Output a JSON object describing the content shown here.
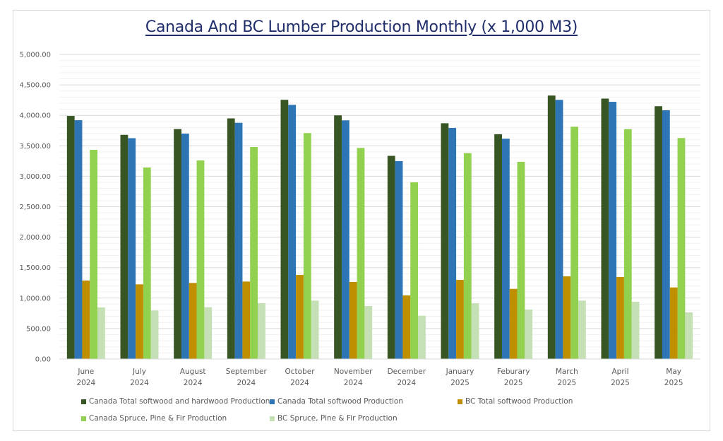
{
  "chart_data": {
    "type": "bar",
    "title": "Canada And BC Lumber Production Monthly (x 1,000 M3)",
    "xlabel": "",
    "ylabel": "",
    "ylim": [
      0,
      5000
    ],
    "y_major_step": 500,
    "y_minor_step": 100,
    "grid": true,
    "legend_position": "bottom",
    "yticks": [
      "0.00",
      "500.00",
      "1,000.00",
      "1,500.00",
      "2,000.00",
      "2,500.00",
      "3,000.00",
      "3,500.00",
      "4,000.00",
      "4,500.00",
      "5,000.00"
    ],
    "categories": [
      [
        "June",
        "2024"
      ],
      [
        "July",
        "2024"
      ],
      [
        "August",
        "2024"
      ],
      [
        "September",
        "2024"
      ],
      [
        "October",
        "2024"
      ],
      [
        "November",
        "2024"
      ],
      [
        "December",
        "2024"
      ],
      [
        "January",
        "2025"
      ],
      [
        "Feburary",
        "2025"
      ],
      [
        "March",
        "2025"
      ],
      [
        "April",
        "2025"
      ],
      [
        "May",
        "2025"
      ]
    ],
    "series": [
      {
        "name": "Canada Total softwood and hardwood Production",
        "color": "#375623",
        "values": [
          3990,
          3680,
          3775,
          3950,
          4255,
          4000,
          3335,
          3870,
          3690,
          4325,
          4275,
          4150
        ]
      },
      {
        "name": "Canada Total softwood Production",
        "color": "#2E75B6",
        "values": [
          3920,
          3625,
          3700,
          3878,
          4172,
          3918,
          3248,
          3793,
          3616,
          4254,
          4222,
          4083
        ]
      },
      {
        "name": "BC Total softwood Production",
        "color": "#BF8F00",
        "values": [
          1288,
          1226,
          1249,
          1272,
          1380,
          1265,
          1044,
          1299,
          1152,
          1357,
          1346,
          1175
        ]
      },
      {
        "name": "Canada Spruce, Pine & Fir Production",
        "color": "#92D050",
        "values": [
          3434,
          3144,
          3260,
          3480,
          3709,
          3465,
          2900,
          3380,
          3237,
          3813,
          3774,
          3628
        ]
      },
      {
        "name": "BC Spruce, Pine & Fir Production",
        "color": "#C5E0B4",
        "values": [
          847,
          797,
          850,
          916,
          959,
          870,
          711,
          916,
          812,
          959,
          940,
          766
        ]
      }
    ]
  }
}
